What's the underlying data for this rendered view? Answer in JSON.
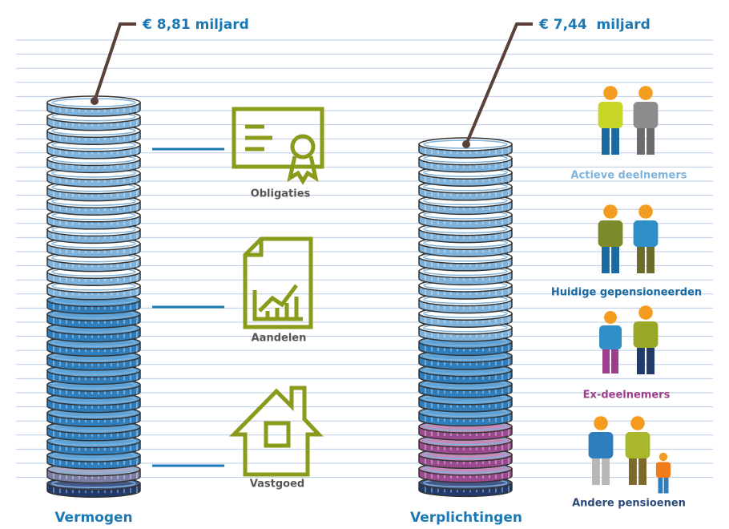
{
  "assets": {
    "total": "€ 8,81 miljard",
    "label": "Vermogen",
    "categories": [
      "Obligaties",
      "Aandelen",
      "Vastgoed"
    ]
  },
  "liabilities": {
    "total": "€ 7,44  miljard",
    "label": "Verplichtingen",
    "groups": [
      "Actieve deelnemers",
      "Huidige gepensioneerden",
      "Ex-deelnemers",
      "Andere pensioenen"
    ]
  }
}
